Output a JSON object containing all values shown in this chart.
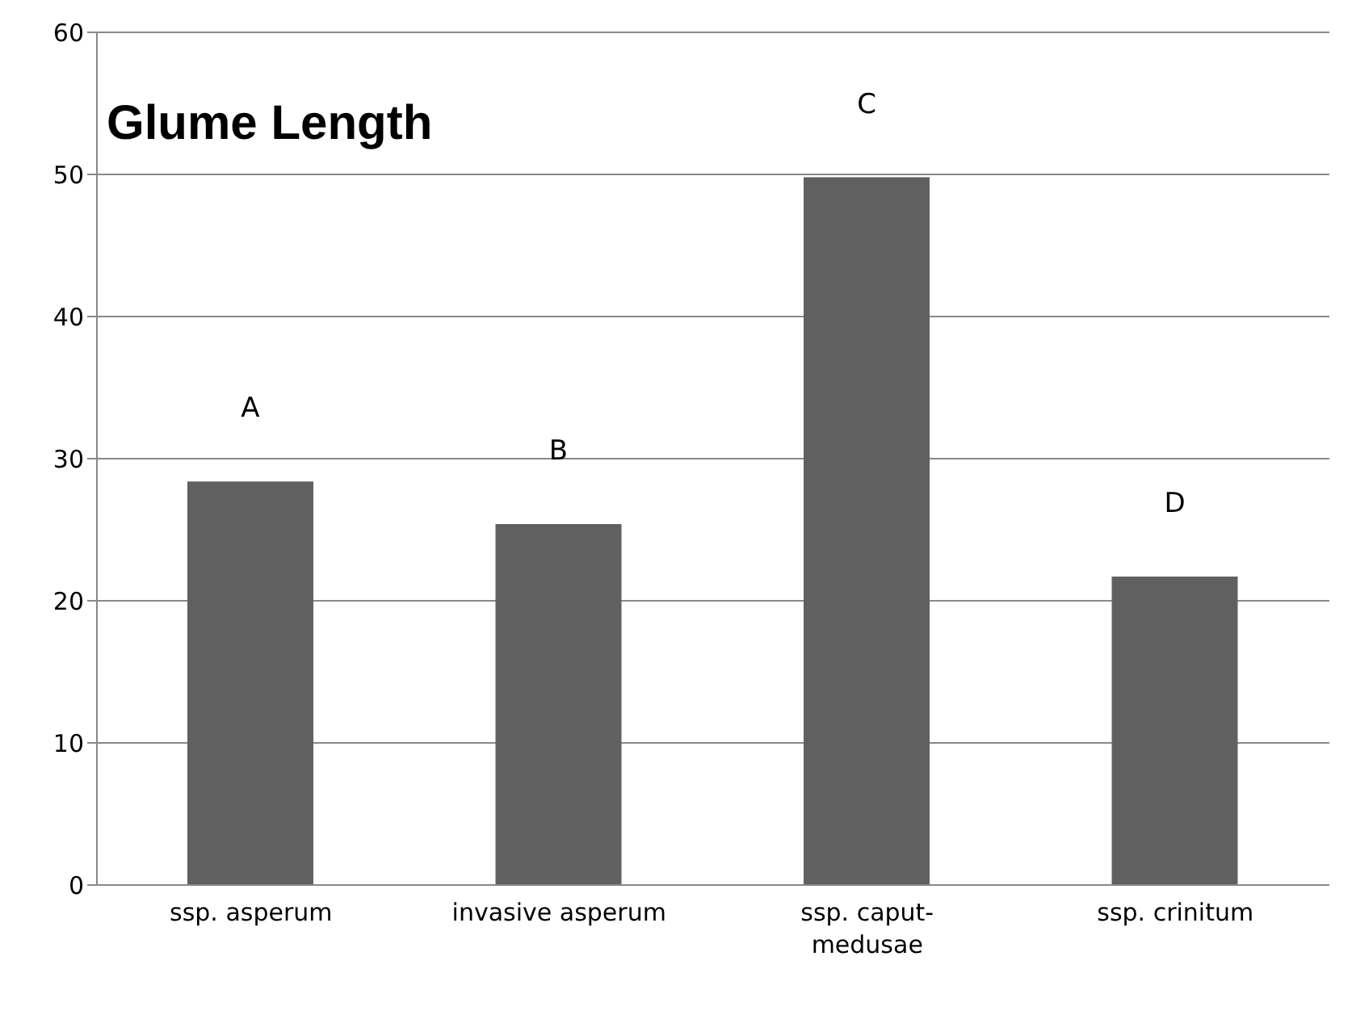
{
  "chart_data": {
    "type": "bar",
    "title": "Glume Length",
    "categories": [
      "ssp. asperum",
      "invasive asperum",
      "ssp. caput-medusae",
      "ssp. crinitum"
    ],
    "values": [
      28.4,
      25.4,
      49.8,
      21.7
    ],
    "color": "#606060",
    "ylim": [
      0,
      60
    ],
    "yticks": [
      0,
      10,
      20,
      30,
      40,
      50,
      60
    ],
    "grid": "y",
    "annotations": [
      "A",
      "B",
      "C",
      "D"
    ]
  }
}
